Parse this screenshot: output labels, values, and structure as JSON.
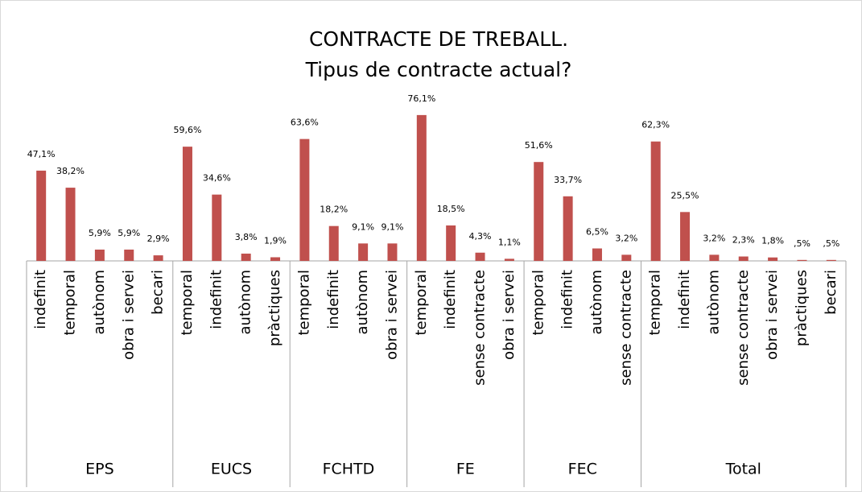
{
  "chart_data": {
    "type": "bar",
    "title": "CONTRACTE DE TREBALL.",
    "subtitle": "Tipus de contracte actual?",
    "color": "#c0504d",
    "groups": [
      {
        "name": "EPS",
        "categories": [
          "indefinit",
          "temporal",
          "autònom",
          "obra i servei",
          "becari"
        ],
        "values": [
          47.1,
          38.2,
          5.9,
          5.9,
          2.9
        ],
        "value_labels": [
          "47,1%",
          "38,2%",
          "5,9%",
          "5,9%",
          "2,9%"
        ]
      },
      {
        "name": "EUCS",
        "categories": [
          "temporal",
          "indefinit",
          "autònom",
          "pràctiques"
        ],
        "values": [
          59.6,
          34.6,
          3.8,
          1.9
        ],
        "value_labels": [
          "59,6%",
          "34,6%",
          "3,8%",
          "1,9%"
        ]
      },
      {
        "name": "FCHTD",
        "categories": [
          "temporal",
          "indefinit",
          "autònom",
          "obra i servei"
        ],
        "values": [
          63.6,
          18.2,
          9.1,
          9.1
        ],
        "value_labels": [
          "63,6%",
          "18,2%",
          "9,1%",
          "9,1%"
        ]
      },
      {
        "name": "FE",
        "categories": [
          "temporal",
          "indefinit",
          "sense contracte",
          "obra i servei"
        ],
        "values": [
          76.1,
          18.5,
          4.3,
          1.1
        ],
        "value_labels": [
          "76,1%",
          "18,5%",
          "4,3%",
          "1,1%"
        ]
      },
      {
        "name": "FEC",
        "categories": [
          "temporal",
          "indefinit",
          "autònom",
          "sense contracte"
        ],
        "values": [
          51.6,
          33.7,
          6.5,
          3.2
        ],
        "value_labels": [
          "51,6%",
          "33,7%",
          "6,5%",
          "3,2%"
        ]
      },
      {
        "name": "Total",
        "categories": [
          "temporal",
          "indefinit",
          "autònom",
          "sense contracte",
          "obra i servei",
          "pràctiques",
          "becari"
        ],
        "values": [
          62.3,
          25.5,
          3.2,
          2.3,
          1.8,
          0.5,
          0.5
        ],
        "value_labels": [
          "62,3%",
          "25,5%",
          "3,2%",
          "2,3%",
          "1,8%",
          ",5%",
          ",5%"
        ]
      }
    ]
  }
}
